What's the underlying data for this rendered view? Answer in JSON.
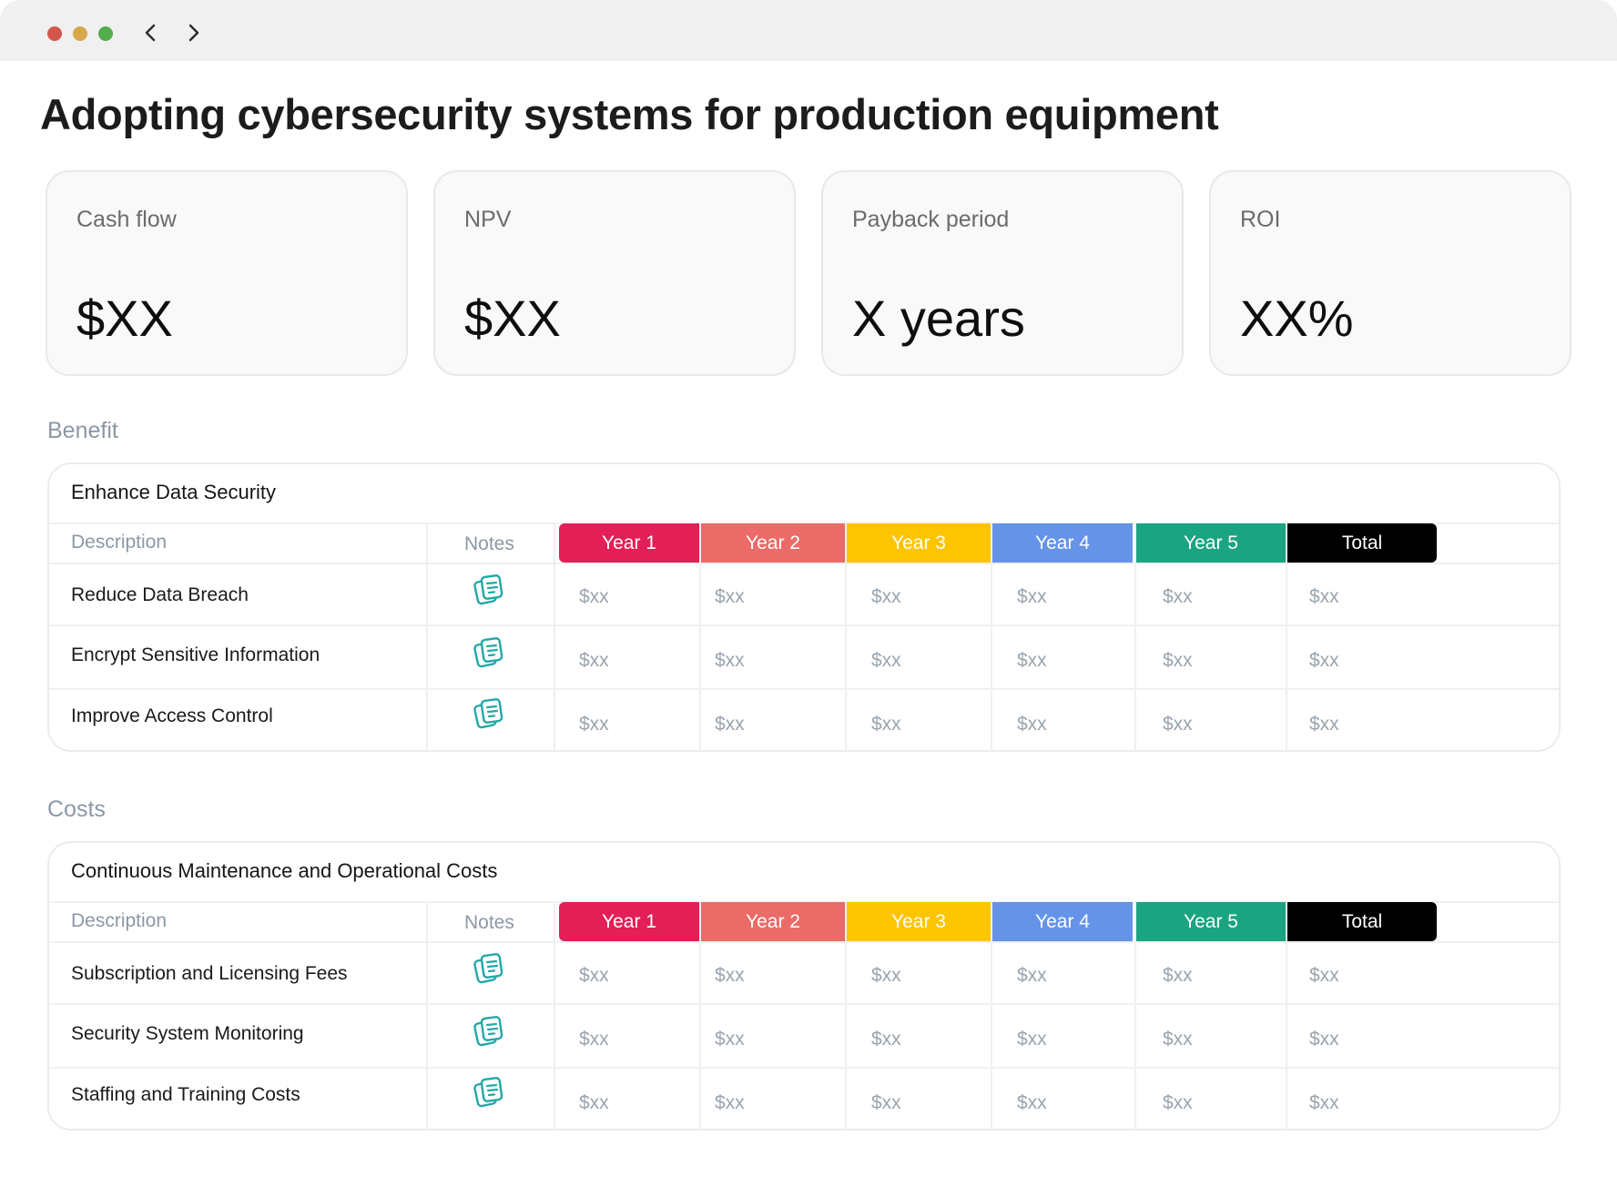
{
  "window": {
    "controls": [
      "close",
      "minimize",
      "maximize"
    ]
  },
  "nav": {
    "back_icon": "chevron-left-icon",
    "forward_icon": "chevron-right-icon"
  },
  "page_title": "Adopting cybersecurity systems for production equipment",
  "kpis": [
    {
      "label": "Cash flow",
      "value": "$XX"
    },
    {
      "label": "NPV",
      "value": "$XX"
    },
    {
      "label": "Payback period",
      "value": "X years"
    },
    {
      "label": "ROI",
      "value": "XX%"
    }
  ],
  "columns": {
    "description": "Description",
    "notes": "Notes",
    "years": [
      {
        "label": "Year 1",
        "color": "#e21f57"
      },
      {
        "label": "Year 2",
        "color": "#eb6b68"
      },
      {
        "label": "Year 3",
        "color": "#fdc400"
      },
      {
        "label": "Year 4",
        "color": "#6593e8"
      },
      {
        "label": "Year 5",
        "color": "#1ba481"
      },
      {
        "label": "Total",
        "color": "#000000"
      }
    ]
  },
  "benefit": {
    "section_label": "Benefit",
    "title": "Enhance Data Security",
    "rows": [
      {
        "description": "Reduce Data Breach",
        "values": [
          "$xx",
          "$xx",
          "$xx",
          "$xx",
          "$xx",
          "$xx"
        ]
      },
      {
        "description": "Encrypt Sensitive Information",
        "values": [
          "$xx",
          "$xx",
          "$xx",
          "$xx",
          "$xx",
          "$xx"
        ]
      },
      {
        "description": "Improve Access Control",
        "values": [
          "$xx",
          "$xx",
          "$xx",
          "$xx",
          "$xx",
          "$xx"
        ]
      }
    ]
  },
  "costs": {
    "section_label": "Costs",
    "title": "Continuous Maintenance and Operational Costs",
    "rows": [
      {
        "description": "Subscription and Licensing Fees",
        "values": [
          "$xx",
          "$xx",
          "$xx",
          "$xx",
          "$xx",
          "$xx"
        ]
      },
      {
        "description": "Security System Monitoring",
        "values": [
          "$xx",
          "$xx",
          "$xx",
          "$xx",
          "$xx",
          "$xx"
        ]
      },
      {
        "description": "Staffing and Training Costs",
        "values": [
          "$xx",
          "$xx",
          "$xx",
          "$xx",
          "$xx",
          "$xx"
        ]
      }
    ]
  },
  "accent": {
    "note_icon_color": "#22a8a6"
  }
}
